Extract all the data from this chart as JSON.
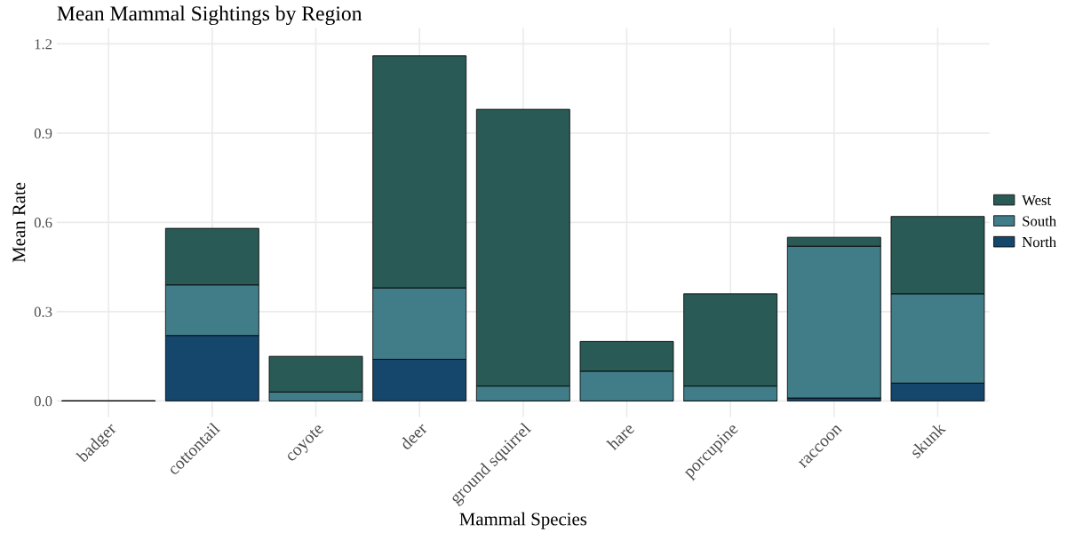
{
  "chart_data": {
    "type": "bar",
    "title": "Mean Mammal Sightings by Region",
    "xlabel": "Mammal Species",
    "ylabel": "Mean Rate",
    "categories": [
      "badger",
      "cottontail",
      "coyote",
      "deer",
      "ground squirrel",
      "hare",
      "porcupine",
      "raccoon",
      "skunk"
    ],
    "stacked": true,
    "series": [
      {
        "name": "North",
        "color": "#15466b",
        "values": [
          0,
          0.22,
          0,
          0.14,
          0,
          0,
          0,
          0.01,
          0.06
        ]
      },
      {
        "name": "South",
        "color": "#417d88",
        "values": [
          0,
          0.17,
          0.03,
          0.24,
          0.05,
          0.1,
          0.05,
          0.51,
          0.3
        ]
      },
      {
        "name": "West",
        "color": "#2a5a55",
        "values": [
          0,
          0.19,
          0.12,
          0.78,
          0.93,
          0.1,
          0.31,
          0.03,
          0.26
        ]
      }
    ],
    "ylim": [
      0,
      1.2
    ],
    "yticks": [
      {
        "value": 0,
        "label": "0.0"
      },
      0.3,
      0.6,
      0.9,
      1.2
    ],
    "grid": true,
    "legend": "right"
  }
}
